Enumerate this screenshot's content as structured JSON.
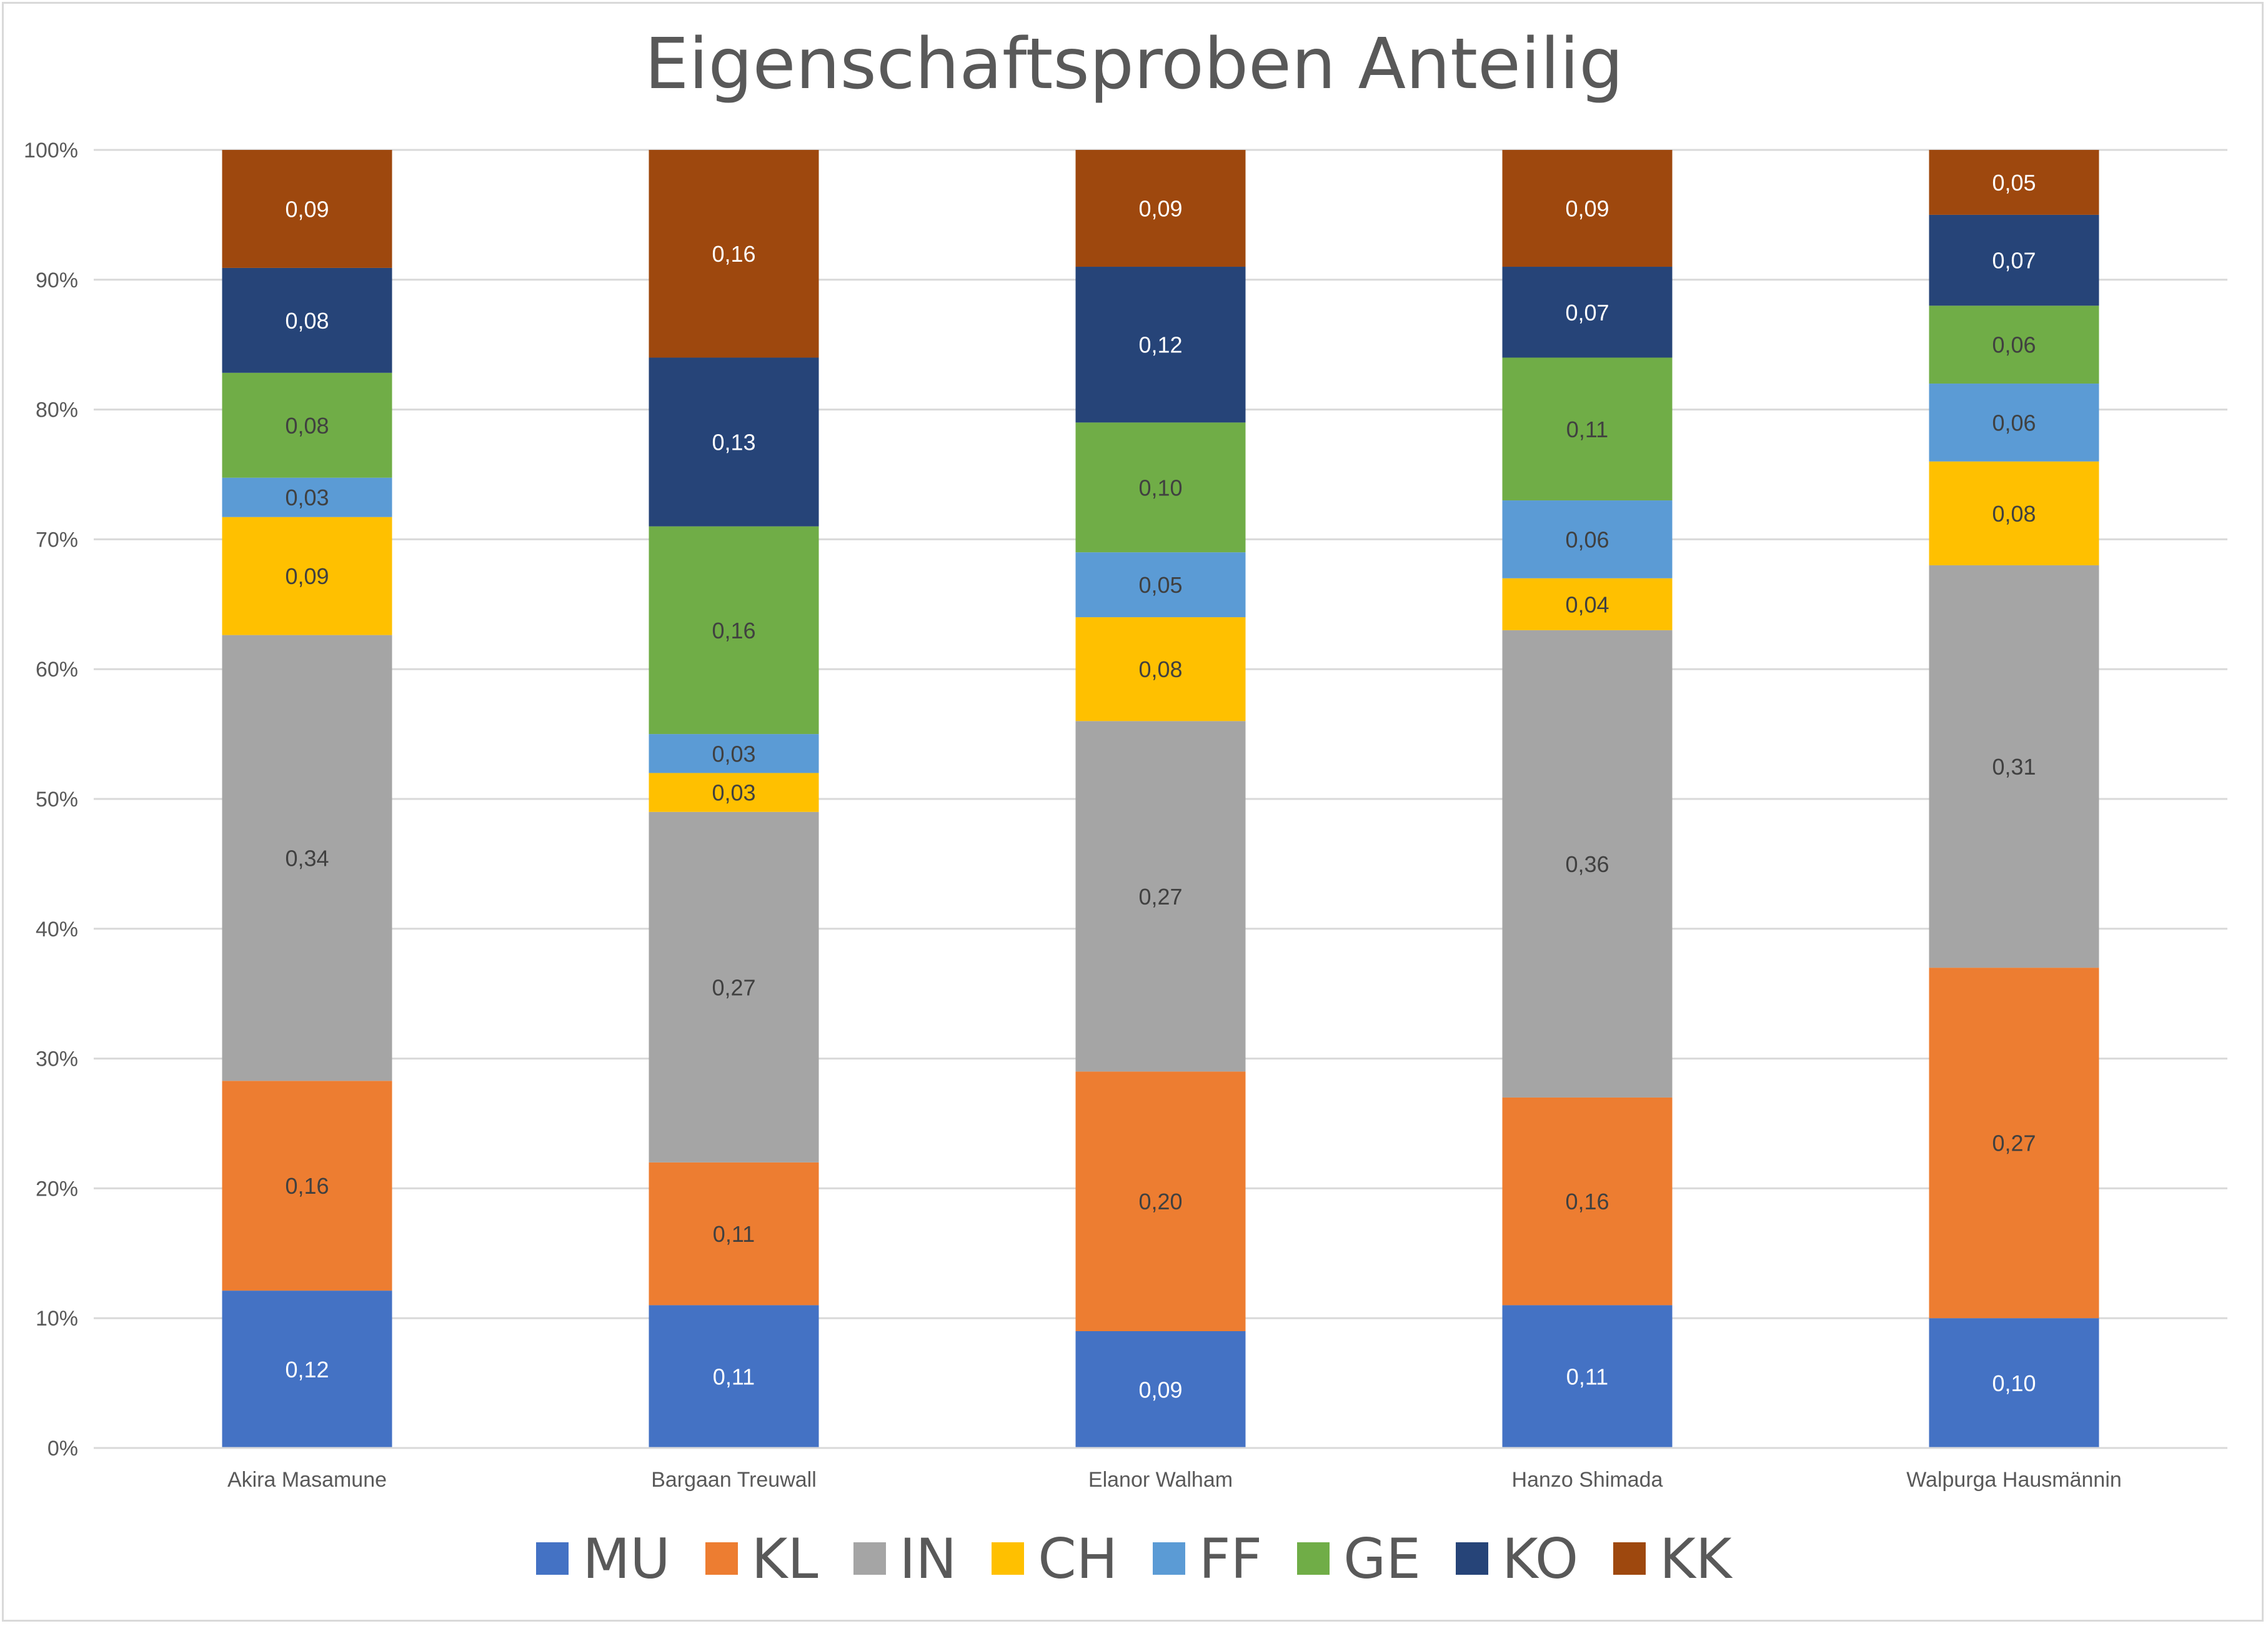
{
  "chart_data": {
    "type": "stacked-bar-100",
    "title": "Eigenschaftsproben Anteilig",
    "categories": [
      "Akira Masamune",
      "Bargaan Treuwall",
      "Elanor Walham",
      "Hanzo Shimada",
      "Walpurga Hausmännin"
    ],
    "y_ticks": [
      "0%",
      "10%",
      "20%",
      "30%",
      "40%",
      "50%",
      "60%",
      "70%",
      "80%",
      "90%",
      "100%"
    ],
    "ylim": [
      0,
      1
    ],
    "grid": true,
    "legend_position": "bottom",
    "series": [
      {
        "name": "MU",
        "color": "#4472c4",
        "label_color": "#ffffff",
        "values": [
          0.12,
          0.11,
          0.09,
          0.11,
          0.1
        ],
        "labels": [
          "0,12",
          "0,11",
          "0,09",
          "0,11",
          "0,10"
        ]
      },
      {
        "name": "KL",
        "color": "#ed7d31",
        "label_color": "#404040",
        "values": [
          0.16,
          0.11,
          0.2,
          0.16,
          0.27
        ],
        "labels": [
          "0,16",
          "0,11",
          "0,20",
          "0,16",
          "0,27"
        ]
      },
      {
        "name": "IN",
        "color": "#a5a5a5",
        "label_color": "#404040",
        "values": [
          0.34,
          0.27,
          0.27,
          0.36,
          0.31
        ],
        "labels": [
          "0,34",
          "0,27",
          "0,27",
          "0,36",
          "0,31"
        ]
      },
      {
        "name": "CH",
        "color": "#ffc000",
        "label_color": "#404040",
        "values": [
          0.09,
          0.03,
          0.08,
          0.04,
          0.08
        ],
        "labels": [
          "0,09",
          "0,03",
          "0,08",
          "0,04",
          "0,08"
        ]
      },
      {
        "name": "FF",
        "color": "#5b9bd5",
        "label_color": "#404040",
        "values": [
          0.03,
          0.03,
          0.05,
          0.06,
          0.06
        ],
        "labels": [
          "0,03",
          "0,03",
          "0,05",
          "0,06",
          "0,06"
        ]
      },
      {
        "name": "GE",
        "color": "#70ad47",
        "label_color": "#404040",
        "values": [
          0.08,
          0.16,
          0.1,
          0.11,
          0.06
        ],
        "labels": [
          "0,08",
          "0,16",
          "0,10",
          "0,11",
          "0,06"
        ]
      },
      {
        "name": "KO",
        "color": "#264478",
        "label_color": "#ffffff",
        "values": [
          0.08,
          0.13,
          0.12,
          0.07,
          0.07
        ],
        "labels": [
          "0,08",
          "0,13",
          "0,12",
          "0,07",
          "0,07"
        ]
      },
      {
        "name": "KK",
        "color": "#9e480e",
        "label_color": "#ffffff",
        "values": [
          0.09,
          0.16,
          0.09,
          0.09,
          0.05
        ],
        "labels": [
          "0,09",
          "0,16",
          "0,09",
          "0,09",
          "0,05"
        ]
      }
    ]
  }
}
